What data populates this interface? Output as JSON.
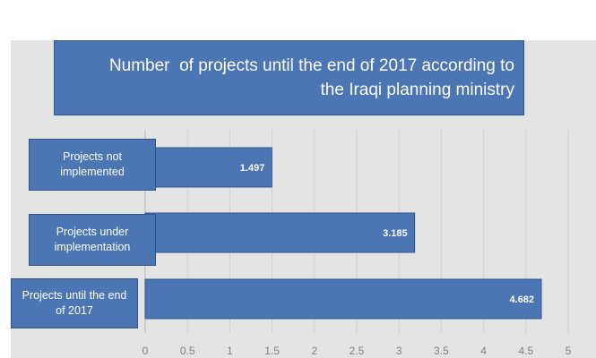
{
  "chart_data": {
    "type": "bar",
    "orientation": "horizontal",
    "title_lines": [
      "Number  of projects until the end of 2017 according to",
      "the Iraqi planning ministry"
    ],
    "categories": [
      "Projects not implemented",
      "Projects under implementation",
      "Projects until the end of 2017"
    ],
    "values": [
      1.497,
      3.185,
      4.682
    ],
    "value_labels": [
      "1.497",
      "3.185",
      "4.682"
    ],
    "x_ticks": [
      "0",
      "0.5",
      "1",
      "1.5",
      "2",
      "2.5",
      "3",
      "3.5",
      "4",
      "4.5",
      "5"
    ],
    "xlim": [
      0,
      5
    ],
    "grid": true,
    "colors": {
      "bar": "#4b75b3",
      "bar_border": "#2f5591",
      "panel": "#e4e4e4",
      "grid": "#cfcfcf",
      "tick": "#7f7f7f"
    }
  }
}
